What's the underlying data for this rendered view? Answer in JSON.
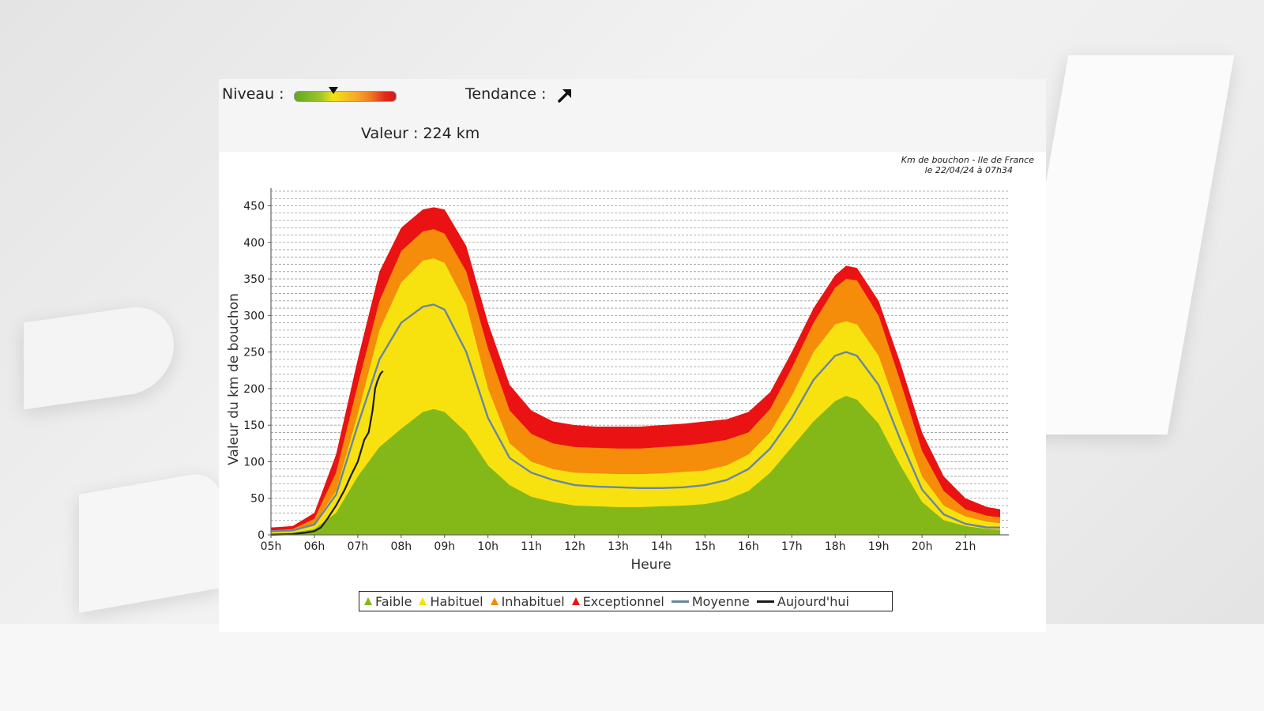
{
  "header": {
    "niveau_label": "Niveau :",
    "niveau_level": 0.38,
    "tendance_label": "Tendance :",
    "tendance_icon": "arrow-up-right-icon",
    "valeur_label": "Valeur : 224 km"
  },
  "colors": {
    "faible": "#84b819",
    "habituel": "#f7e210",
    "inhabituel": "#f58c0a",
    "exceptionnel": "#ea1212",
    "moyenne": "#6a86a0",
    "aujourdhui": "#1a1a1a"
  },
  "chart_data": {
    "type": "area",
    "title": "Km de bouchon - Ile de France",
    "subtitle": "le 22/04/24 à 07h34",
    "xlabel": "Heure",
    "ylabel": "Valeur du  km de bouchon",
    "ylim": [
      0,
      470
    ],
    "yticks": [
      0,
      50,
      100,
      150,
      200,
      250,
      300,
      350,
      400,
      450
    ],
    "xlim": [
      5,
      22
    ],
    "xticks": [
      5,
      6,
      7,
      8,
      9,
      10,
      11,
      12,
      13,
      14,
      15,
      16,
      17,
      18,
      19,
      20,
      21
    ],
    "xtick_labels": [
      "05h",
      "06h",
      "07h",
      "08h",
      "09h",
      "10h",
      "11h",
      "12h",
      "13h",
      "14h",
      "15h",
      "16h",
      "17h",
      "18h",
      "19h",
      "20h",
      "21h"
    ],
    "grid": true,
    "legend": {
      "placement": "bottom",
      "entries": [
        "Faible",
        "Habituel",
        "Inhabituel",
        "Exceptionnel",
        "Moyenne",
        "Aujourd'hui"
      ]
    },
    "x": [
      5,
      5.5,
      6,
      6.5,
      7,
      7.5,
      8,
      8.5,
      8.75,
      9,
      9.5,
      10,
      10.5,
      11,
      11.5,
      12,
      12.5,
      13,
      13.5,
      14,
      14.5,
      15,
      15.5,
      16,
      16.5,
      17,
      17.5,
      18,
      18.25,
      18.5,
      19,
      19.5,
      20,
      20.5,
      21,
      21.5,
      21.8
    ],
    "series": [
      {
        "name": "Exceptionnel",
        "values": [
          10,
          12,
          30,
          110,
          240,
          360,
          420,
          445,
          448,
          445,
          395,
          290,
          205,
          170,
          155,
          150,
          148,
          148,
          148,
          150,
          152,
          155,
          158,
          168,
          195,
          250,
          310,
          355,
          368,
          365,
          320,
          235,
          140,
          80,
          50,
          38,
          35
        ]
      },
      {
        "name": "Inhabituel",
        "values": [
          6,
          8,
          22,
          85,
          205,
          320,
          388,
          415,
          418,
          412,
          360,
          255,
          170,
          138,
          125,
          120,
          119,
          118,
          118,
          120,
          122,
          125,
          130,
          140,
          172,
          228,
          290,
          338,
          350,
          348,
          300,
          210,
          115,
          60,
          35,
          26,
          24
        ]
      },
      {
        "name": "Habituel",
        "values": [
          4,
          6,
          15,
          60,
          165,
          280,
          345,
          375,
          378,
          372,
          315,
          200,
          125,
          100,
          90,
          85,
          84,
          83,
          83,
          84,
          86,
          88,
          95,
          110,
          140,
          190,
          250,
          288,
          292,
          288,
          245,
          160,
          80,
          40,
          25,
          18,
          16
        ]
      },
      {
        "name": "Faible",
        "values": [
          2,
          3,
          8,
          30,
          80,
          120,
          145,
          168,
          172,
          168,
          140,
          95,
          68,
          52,
          45,
          40,
          39,
          38,
          38,
          39,
          40,
          42,
          48,
          60,
          85,
          120,
          155,
          183,
          190,
          185,
          152,
          95,
          45,
          20,
          12,
          8,
          7
        ]
      },
      {
        "name": "Moyenne",
        "values": [
          5,
          6,
          14,
          55,
          150,
          240,
          290,
          312,
          315,
          308,
          250,
          160,
          105,
          85,
          75,
          68,
          66,
          65,
          64,
          64,
          65,
          68,
          75,
          90,
          118,
          160,
          212,
          245,
          250,
          245,
          205,
          130,
          62,
          28,
          15,
          10,
          10
        ]
      },
      {
        "name": "Aujourd'hui",
        "x": [
          6.7,
          7.0,
          7.2,
          7.34,
          7.45,
          7.55
        ],
        "values": [
          55,
          85,
          105,
          135,
          155,
          224
        ]
      }
    ],
    "aujourdhui_full": {
      "x": [
        5,
        5.5,
        5.8,
        6.0,
        6.15,
        6.3,
        6.5,
        6.7,
        6.85,
        7.0,
        7.15,
        7.25,
        7.34,
        7.4,
        7.45,
        7.52,
        7.58
      ],
      "values": [
        0,
        1,
        3,
        5,
        10,
        22,
        40,
        62,
        82,
        100,
        130,
        140,
        170,
        200,
        210,
        220,
        224
      ]
    }
  }
}
